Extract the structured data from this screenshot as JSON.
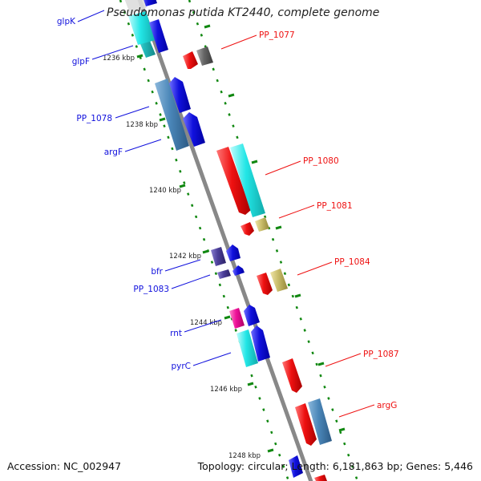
{
  "map": {
    "title": "Pseudomonas putida KT2440, complete genome",
    "accession": "Accession: NC_002947",
    "topology": "Topology: circular; Length: 6,181,863 bp; Genes: 5,446",
    "ticks": [
      "1236 kbp",
      "1238 kbp",
      "1240 kbp",
      "1242 kbp",
      "1244 kbp",
      "1246 kbp",
      "1248 kbp"
    ],
    "genes_reverse_strand": [
      "glpK",
      "glpF",
      "PP_1078",
      "argF",
      "bfr",
      "PP_1083",
      "rnt",
      "pyrC"
    ],
    "genes_forward_strand": [
      "PP_1077",
      "PP_1080",
      "PP_1081",
      "PP_1084",
      "PP_1087",
      "argG"
    ],
    "colors": {
      "forward": "#ee1111",
      "reverse": "#1111dd",
      "backbone": "#888888",
      "tick": "#118811",
      "cyan": "#22dddd",
      "steelblue": "#4a86b8",
      "gray": "#666666",
      "khaki": "#c9bd6a",
      "indigo": "#4c3f9a",
      "magenta": "#ee1199",
      "teal": "#22bbbb"
    }
  }
}
